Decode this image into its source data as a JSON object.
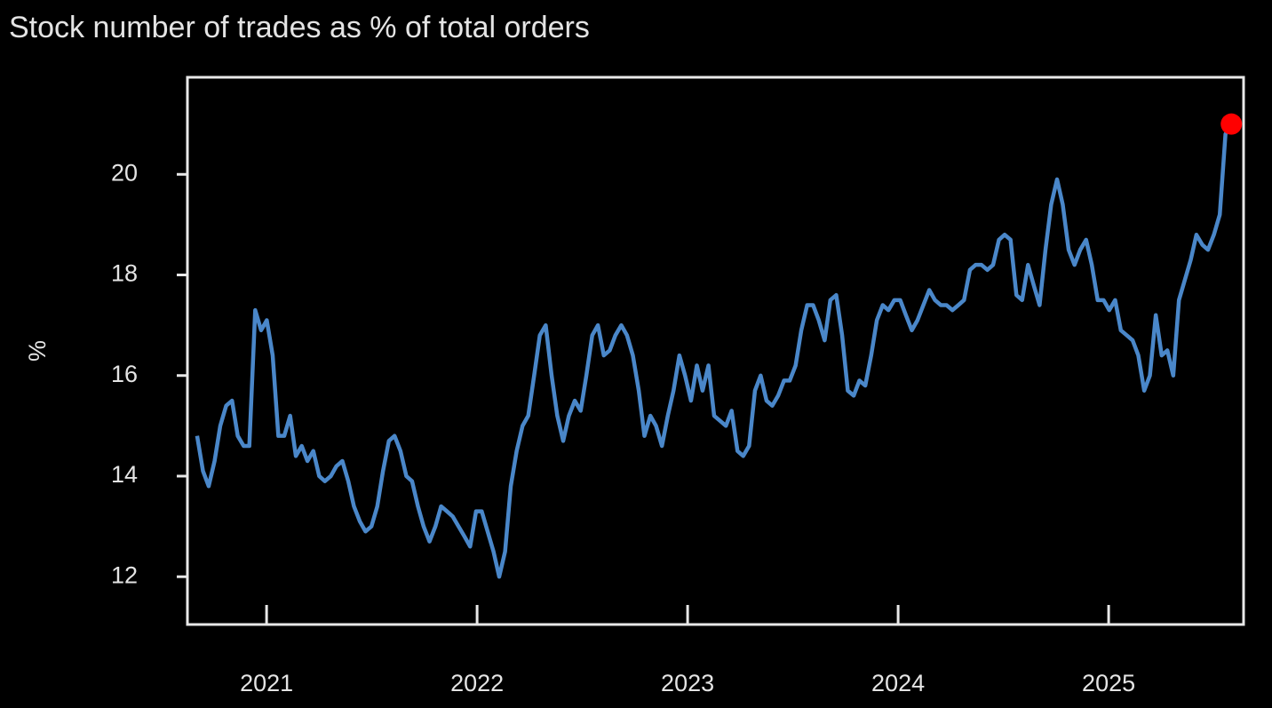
{
  "chart_data": {
    "type": "line",
    "title": "Stock number of trades as % of total orders",
    "ylabel": "%",
    "x": [
      2020.67,
      2020.698,
      2020.725,
      2020.753,
      2020.78,
      2020.808,
      2020.836,
      2020.863,
      2020.891,
      2020.918,
      2020.946,
      2020.974,
      2021.001,
      2021.029,
      2021.056,
      2021.084,
      2021.112,
      2021.139,
      2021.167,
      2021.194,
      2021.222,
      2021.25,
      2021.277,
      2021.305,
      2021.332,
      2021.36,
      2021.388,
      2021.415,
      2021.443,
      2021.47,
      2021.498,
      2021.526,
      2021.553,
      2021.581,
      2021.608,
      2021.636,
      2021.664,
      2021.691,
      2021.719,
      2021.746,
      2021.774,
      2021.802,
      2021.829,
      2021.857,
      2021.884,
      2021.912,
      2021.94,
      2021.967,
      2021.995,
      2022.022,
      2022.05,
      2022.078,
      2022.105,
      2022.133,
      2022.16,
      2022.188,
      2022.216,
      2022.243,
      2022.271,
      2022.298,
      2022.326,
      2022.354,
      2022.381,
      2022.409,
      2022.436,
      2022.464,
      2022.492,
      2022.519,
      2022.547,
      2022.574,
      2022.602,
      2022.63,
      2022.657,
      2022.685,
      2022.712,
      2022.74,
      2022.768,
      2022.795,
      2022.823,
      2022.85,
      2022.878,
      2022.906,
      2022.933,
      2022.961,
      2022.988,
      2023.016,
      2023.044,
      2023.071,
      2023.099,
      2023.126,
      2023.154,
      2023.182,
      2023.209,
      2023.237,
      2023.264,
      2023.292,
      2023.32,
      2023.347,
      2023.375,
      2023.402,
      2023.43,
      2023.458,
      2023.485,
      2023.513,
      2023.54,
      2023.568,
      2023.596,
      2023.623,
      2023.651,
      2023.678,
      2023.706,
      2023.734,
      2023.761,
      2023.789,
      2023.816,
      2023.844,
      2023.872,
      2023.899,
      2023.927,
      2023.954,
      2023.982,
      2024.01,
      2024.037,
      2024.065,
      2024.092,
      2024.12,
      2024.148,
      2024.175,
      2024.203,
      2024.23,
      2024.258,
      2024.286,
      2024.313,
      2024.341,
      2024.368,
      2024.396,
      2024.424,
      2024.451,
      2024.479,
      2024.506,
      2024.534,
      2024.562,
      2024.589,
      2024.617,
      2024.644,
      2024.672,
      2024.7,
      2024.727,
      2024.755,
      2024.782,
      2024.81,
      2024.838,
      2024.865,
      2024.893,
      2024.92,
      2024.948,
      2024.976,
      2025.003,
      2025.031,
      2025.058,
      2025.086,
      2025.114,
      2025.141,
      2025.169,
      2025.196,
      2025.224,
      2025.252,
      2025.279,
      2025.307,
      2025.334,
      2025.362,
      2025.39,
      2025.417,
      2025.445,
      2025.472,
      2025.5,
      2025.528,
      2025.555,
      2025.583
    ],
    "series": [
      {
        "color": "#4a87c9",
        "values": [
          14.8,
          14.1,
          13.8,
          14.3,
          15.0,
          15.4,
          15.5,
          14.8,
          14.6,
          14.6,
          17.3,
          16.9,
          17.1,
          16.4,
          14.8,
          14.8,
          15.2,
          14.4,
          14.6,
          14.3,
          14.5,
          14.0,
          13.9,
          14.0,
          14.2,
          14.3,
          13.9,
          13.4,
          13.1,
          12.9,
          13.0,
          13.4,
          14.1,
          14.7,
          14.8,
          14.5,
          14.0,
          13.9,
          13.4,
          13.0,
          12.7,
          13.0,
          13.4,
          13.3,
          13.2,
          13.0,
          12.8,
          12.6,
          13.3,
          13.3,
          12.9,
          12.5,
          12.0,
          12.5,
          13.8,
          14.5,
          15.0,
          15.2,
          16.0,
          16.8,
          17.0,
          16.0,
          15.2,
          14.7,
          15.2,
          15.5,
          15.3,
          16.0,
          16.8,
          17.0,
          16.4,
          16.5,
          16.8,
          17.0,
          16.8,
          16.4,
          15.7,
          14.8,
          15.2,
          15.0,
          14.6,
          15.2,
          15.7,
          16.4,
          16.0,
          15.5,
          16.2,
          15.7,
          16.2,
          15.2,
          15.1,
          15.0,
          15.3,
          14.5,
          14.4,
          14.6,
          15.7,
          16.0,
          15.5,
          15.4,
          15.6,
          15.9,
          15.9,
          16.2,
          16.9,
          17.4,
          17.4,
          17.1,
          16.7,
          17.5,
          17.6,
          16.8,
          15.7,
          15.6,
          15.9,
          15.8,
          16.4,
          17.1,
          17.4,
          17.3,
          17.5,
          17.5,
          17.2,
          16.9,
          17.1,
          17.4,
          17.7,
          17.5,
          17.4,
          17.4,
          17.3,
          17.4,
          17.5,
          18.1,
          18.2,
          18.2,
          18.1,
          18.2,
          18.7,
          18.8,
          18.7,
          17.6,
          17.5,
          18.2,
          17.8,
          17.4,
          18.5,
          19.4,
          19.9,
          19.4,
          18.5,
          18.2,
          18.5,
          18.7,
          18.2,
          17.5,
          17.5,
          17.3,
          17.5,
          16.9,
          16.8,
          16.7,
          16.4,
          15.7,
          16.0,
          17.2,
          16.4,
          16.5,
          16.0,
          17.5,
          17.9,
          18.3,
          18.8,
          18.6,
          18.5,
          18.8,
          19.2,
          20.8,
          21.0
        ]
      }
    ],
    "end_marker_color": "#ff0000",
    "xlim": [
      2020.624,
      2025.641
    ],
    "xticks": [
      2021,
      2022,
      2023,
      2024,
      2025
    ],
    "ylim": [
      11.05,
      21.93
    ],
    "yticks": [
      12,
      14,
      16,
      18,
      20
    ]
  }
}
